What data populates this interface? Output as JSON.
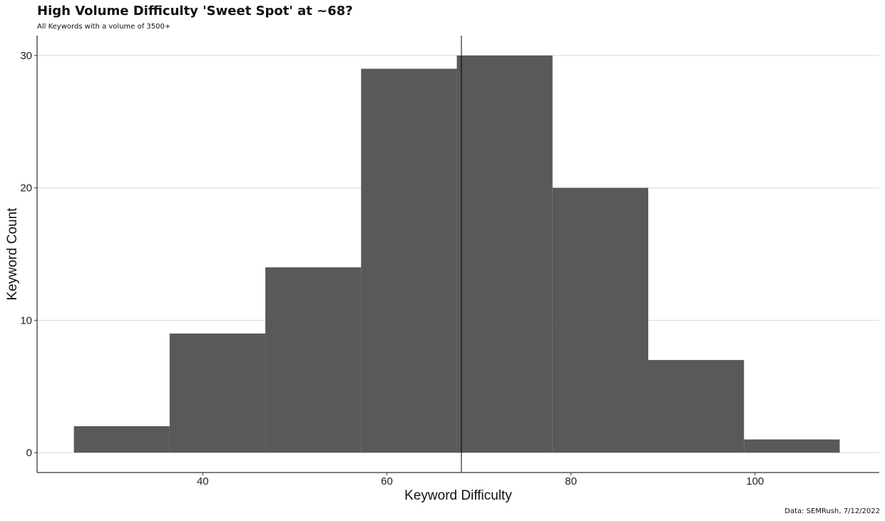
{
  "title": "High Volume Difficulty 'Sweet Spot' at ~68?",
  "subtitle": "All Keywords with a volume of 3500+",
  "caption": "Data: SEMRush, 7/12/2022",
  "chart_data": {
    "type": "bar",
    "subtype": "histogram",
    "title": "High Volume Difficulty 'Sweet Spot' at ~68?",
    "subtitle": "All Keywords with a volume of 3500+",
    "xlabel": "Keyword Difficulty",
    "ylabel": "Keyword Count",
    "bins": [
      {
        "x0": 26.0,
        "x1": 36.4,
        "count": 2
      },
      {
        "x0": 36.4,
        "x1": 46.8,
        "count": 9
      },
      {
        "x0": 46.8,
        "x1": 57.2,
        "count": 14
      },
      {
        "x0": 57.2,
        "x1": 67.6,
        "count": 29
      },
      {
        "x0": 67.6,
        "x1": 78.0,
        "count": 30
      },
      {
        "x0": 78.0,
        "x1": 88.4,
        "count": 20
      },
      {
        "x0": 88.4,
        "x1": 98.8,
        "count": 7
      },
      {
        "x0": 98.8,
        "x1": 109.2,
        "count": 1
      }
    ],
    "vline_x": 68.1,
    "xlim": [
      22.0,
      113.5
    ],
    "ylim": [
      -1.5,
      31.5
    ],
    "xticks": [
      40,
      60,
      80,
      100
    ],
    "yticks": [
      0,
      10,
      20,
      30
    ],
    "bar_color": "#595959",
    "grid": "horizontal major",
    "legend": "none"
  }
}
